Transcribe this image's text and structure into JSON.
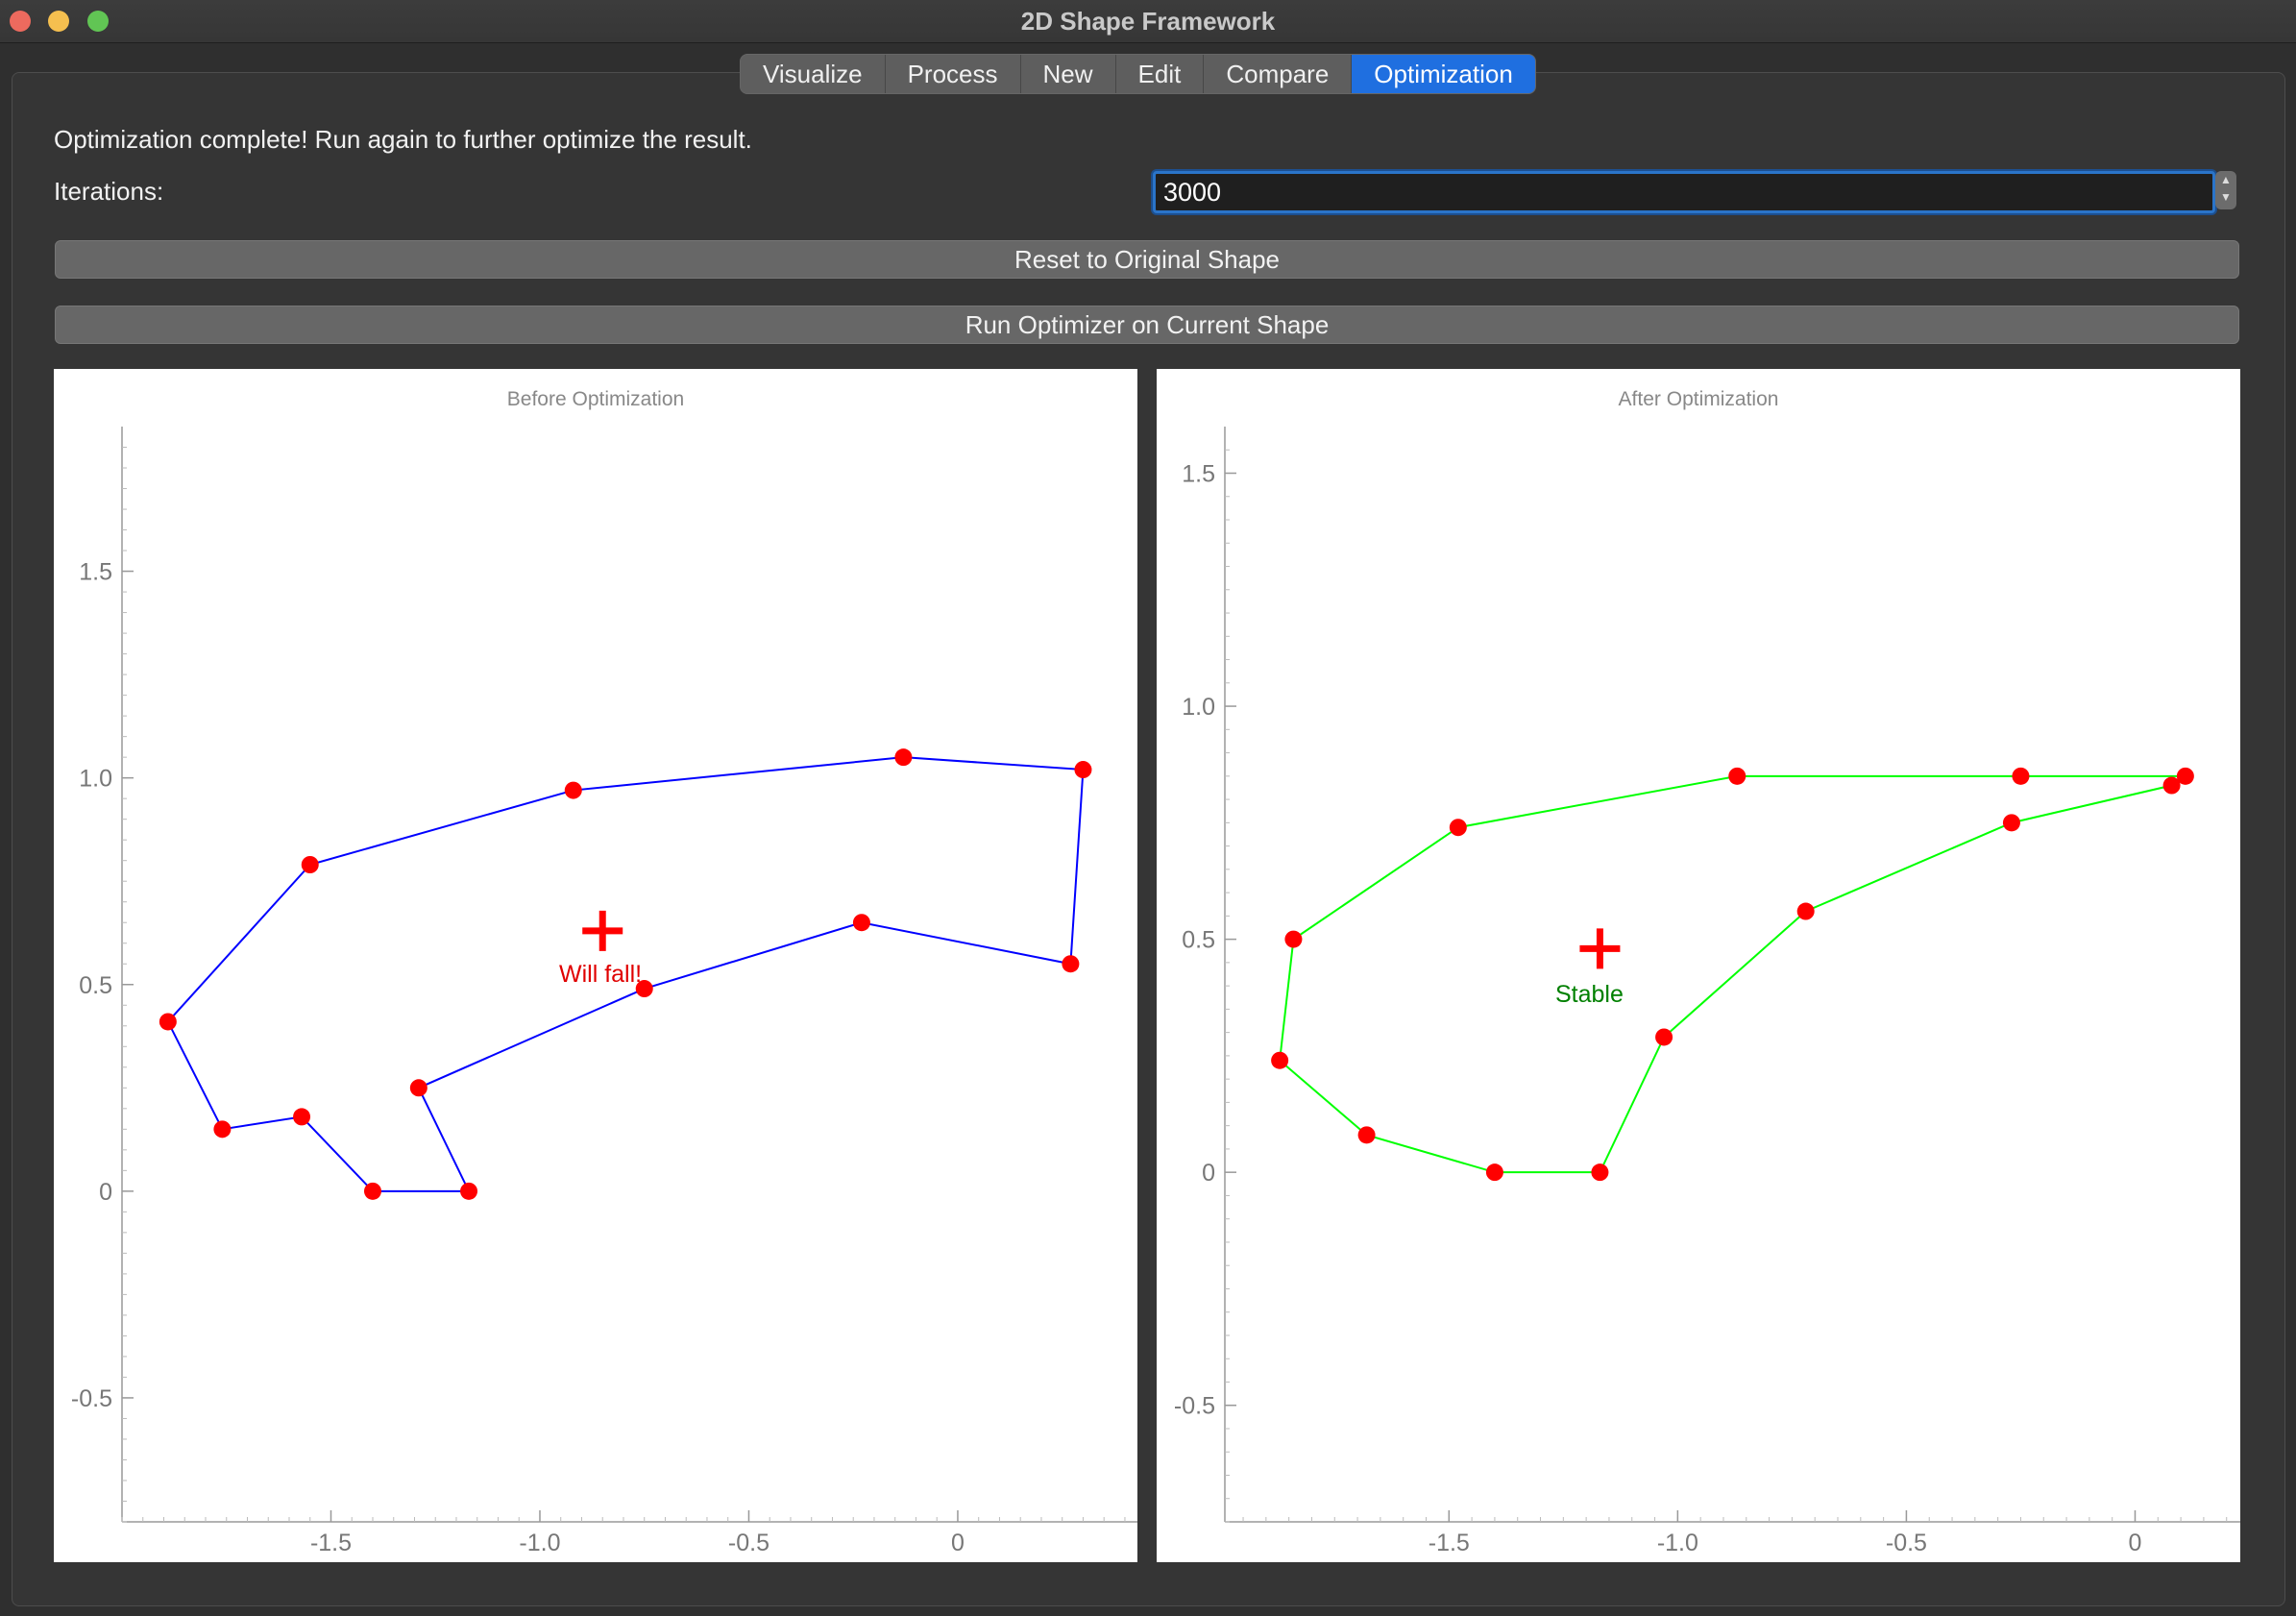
{
  "window": {
    "title": "2D Shape Framework"
  },
  "tabs": [
    {
      "label": "Visualize",
      "active": false
    },
    {
      "label": "Process",
      "active": false
    },
    {
      "label": "New",
      "active": false
    },
    {
      "label": "Edit",
      "active": false
    },
    {
      "label": "Compare",
      "active": false
    },
    {
      "label": "Optimization",
      "active": true
    }
  ],
  "status_text": "Optimization complete! Run again to further optimize the result.",
  "iterations": {
    "label": "Iterations:",
    "value": "3000"
  },
  "buttons": {
    "reset": "Reset to Original Shape",
    "run": "Run Optimizer on Current Shape"
  },
  "colors": {
    "before_line": "#0000ff",
    "after_line": "#00ff00",
    "vertex": "#ff0000",
    "tab_active": "#1f6fe0"
  },
  "chart_data": [
    {
      "type": "line",
      "title": "Before Optimization",
      "xlim": [
        -2.0,
        0.43
      ],
      "ylim": [
        -0.8,
        1.85
      ],
      "xticks": [
        -1.5,
        -1.0,
        -0.5,
        0
      ],
      "xtick_labels": [
        "-1.5",
        "-1.0",
        "-0.5",
        "0"
      ],
      "yticks": [
        -0.5,
        0,
        0.5,
        1.0,
        1.5
      ],
      "ytick_labels": [
        "-0.5",
        "0",
        "0.5",
        "1.0",
        "1.5"
      ],
      "vertices": [
        [
          -1.4,
          0.0
        ],
        [
          -1.17,
          0.0
        ],
        [
          -1.29,
          0.25
        ],
        [
          -0.75,
          0.49
        ],
        [
          -0.23,
          0.65
        ],
        [
          0.27,
          0.55
        ],
        [
          0.3,
          1.02
        ],
        [
          -0.13,
          1.05
        ],
        [
          -0.92,
          0.97
        ],
        [
          -1.55,
          0.79
        ],
        [
          -1.89,
          0.41
        ],
        [
          -1.76,
          0.15
        ],
        [
          -1.57,
          0.18
        ]
      ],
      "centroid": [
        -0.85,
        0.63
      ],
      "centroid_label": "Will fall!"
    },
    {
      "type": "line",
      "title": "After Optimization",
      "xlim": [
        -1.99,
        0.23
      ],
      "ylim": [
        -0.75,
        1.6
      ],
      "xticks": [
        -1.5,
        -1.0,
        -0.5,
        0
      ],
      "xtick_labels": [
        "-1.5",
        "-1.0",
        "-0.5",
        "0"
      ],
      "yticks": [
        -0.5,
        0,
        0.5,
        1.0,
        1.5
      ],
      "ytick_labels": [
        "-0.5",
        "0",
        "0.5",
        "1.0",
        "1.5"
      ],
      "vertices": [
        [
          -1.4,
          0.0
        ],
        [
          -1.17,
          0.0
        ],
        [
          -1.03,
          0.29
        ],
        [
          -0.72,
          0.56
        ],
        [
          -0.27,
          0.75
        ],
        [
          0.08,
          0.83
        ],
        [
          0.11,
          0.85
        ],
        [
          -0.25,
          0.85
        ],
        [
          -0.87,
          0.85
        ],
        [
          -1.48,
          0.74
        ],
        [
          -1.84,
          0.5
        ],
        [
          -1.87,
          0.24
        ],
        [
          -1.68,
          0.08
        ]
      ],
      "centroid": [
        -1.17,
        0.48
      ],
      "centroid_label": "Stable"
    }
  ]
}
